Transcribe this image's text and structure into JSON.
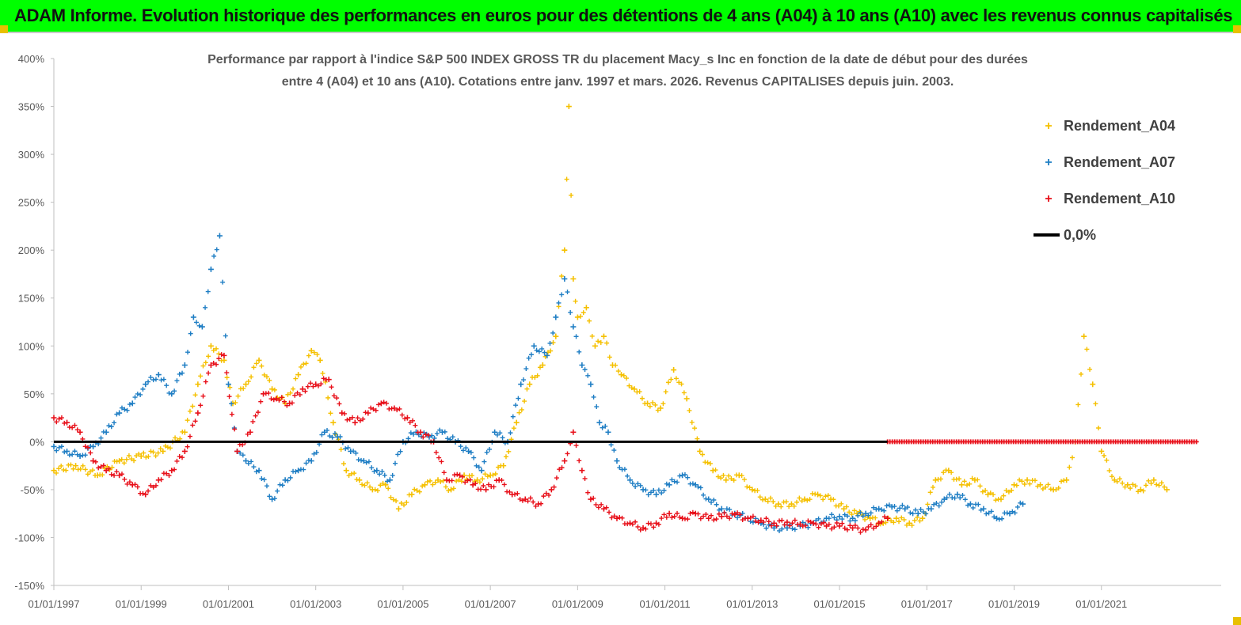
{
  "banner": {
    "title": "ADAM Informe. Evolution historique des performances en euros pour des détentions de 4 ans (A04) à 10 ans (A10) avec les revenus connus capitalisés"
  },
  "colors": {
    "banner_bg": "#00ff00",
    "a04": "#f5c000",
    "a07": "#1f7ec4",
    "a10": "#e8101a",
    "zero_line": "#000000"
  },
  "chart_data": {
    "type": "scatter",
    "title_lines": [
      "Performance par rapport à l'indice S&P 500 INDEX GROSS TR  du placement Macy_s Inc en fonction de la date de début pour des durées",
      "entre 4 (A04) et 10 ans (A10). Cotations entre janv. 1997 et mars. 2026. Revenus CAPITALISES depuis juin. 2003."
    ],
    "ylim": [
      -150,
      400
    ],
    "y_ticks": [
      "400%",
      "350%",
      "300%",
      "250%",
      "200%",
      "150%",
      "100%",
      "50%",
      "0%",
      "-50%",
      "-100%",
      "-150%"
    ],
    "x_ticks": [
      "01/01/1997",
      "01/01/1999",
      "01/01/2001",
      "01/01/2003",
      "01/01/2005",
      "01/01/2007",
      "01/01/2009",
      "01/01/2011",
      "01/01/2013",
      "01/01/2015",
      "01/01/2017",
      "01/01/2019",
      "01/01/2021"
    ],
    "xlim": [
      1997.0,
      2023.2
    ],
    "legend_position": "top-right",
    "series": [
      {
        "name": "Rendement_A04",
        "color": "#f5c000",
        "x": [
          1997.0,
          1997.5,
          1998.0,
          1998.5,
          1999.0,
          1999.5,
          2000.0,
          2000.3,
          2000.6,
          2000.9,
          2001.1,
          2001.4,
          2001.7,
          2002.0,
          2002.3,
          2002.6,
          2002.9,
          2003.1,
          2003.4,
          2003.7,
          2004.0,
          2004.3,
          2004.6,
          2004.9,
          2005.2,
          2005.5,
          2005.8,
          2006.1,
          2006.4,
          2006.7,
          2007.0,
          2007.3,
          2007.6,
          2007.9,
          2008.2,
          2008.5,
          2008.7,
          2008.8,
          2008.9,
          2009.0,
          2009.2,
          2009.4,
          2009.6,
          2009.8,
          2010.0,
          2010.3,
          2010.6,
          2010.9,
          2011.2,
          2011.5,
          2011.8,
          2012.1,
          2012.4,
          2012.7,
          2013.0,
          2013.3,
          2013.6,
          2013.9,
          2014.2,
          2014.5,
          2014.8,
          2015.1,
          2015.4,
          2015.7,
          2016.0,
          2016.3,
          2016.6,
          2016.9,
          2017.2,
          2017.5,
          2017.8,
          2018.1,
          2018.4,
          2018.7,
          2019.0,
          2019.3,
          2019.6,
          2019.9,
          2020.2,
          2020.4,
          2020.6,
          2020.8,
          2021.0,
          2021.3,
          2021.6,
          2021.9,
          2022.2,
          2022.5
        ],
        "y": [
          -30,
          -25,
          -35,
          -20,
          -15,
          -10,
          10,
          60,
          100,
          85,
          40,
          60,
          85,
          55,
          40,
          70,
          95,
          85,
          20,
          -30,
          -40,
          -50,
          -45,
          -70,
          -55,
          -45,
          -40,
          -50,
          -35,
          -40,
          -35,
          -25,
          20,
          60,
          80,
          110,
          200,
          350,
          170,
          130,
          140,
          100,
          110,
          80,
          70,
          55,
          40,
          35,
          75,
          45,
          -10,
          -30,
          -40,
          -35,
          -50,
          -60,
          -65,
          -65,
          -60,
          -55,
          -60,
          -70,
          -75,
          -80,
          -85,
          -80,
          -85,
          -80,
          -40,
          -30,
          -45,
          -40,
          -55,
          -60,
          -45,
          -40,
          -45,
          -50,
          -40,
          0,
          110,
          60,
          -10,
          -40,
          -45,
          -50,
          -40,
          -50
        ]
      },
      {
        "name": "Rendement_A07",
        "color": "#1f7ec4",
        "x": [
          1997.0,
          1997.3,
          1997.6,
          1997.9,
          1998.2,
          1998.5,
          1998.8,
          1999.1,
          1999.4,
          1999.7,
          2000.0,
          2000.2,
          2000.4,
          2000.6,
          2000.8,
          2001.0,
          2001.2,
          2001.4,
          2001.7,
          2002.0,
          2002.3,
          2002.6,
          2002.9,
          2003.2,
          2003.5,
          2003.8,
          2004.1,
          2004.4,
          2004.7,
          2005.0,
          2005.3,
          2005.6,
          2005.9,
          2006.2,
          2006.5,
          2006.8,
          2007.1,
          2007.4,
          2007.7,
          2008.0,
          2008.3,
          2008.5,
          2008.7,
          2008.9,
          2009.1,
          2009.3,
          2009.5,
          2009.7,
          2009.9,
          2010.2,
          2010.5,
          2010.8,
          2011.1,
          2011.4,
          2011.7,
          2012.0,
          2012.3,
          2012.6,
          2012.9,
          2013.2,
          2013.5,
          2013.8,
          2014.1,
          2014.4,
          2014.7,
          2015.0,
          2015.3,
          2015.6,
          2015.9,
          2016.2,
          2016.5,
          2016.8,
          2017.1,
          2017.4,
          2017.7,
          2018.0,
          2018.3,
          2018.6,
          2018.9,
          2019.2
        ],
        "y": [
          -5,
          -10,
          -15,
          -5,
          10,
          30,
          40,
          60,
          70,
          50,
          80,
          130,
          120,
          180,
          215,
          60,
          -10,
          -20,
          -30,
          -60,
          -40,
          -30,
          -20,
          10,
          5,
          -10,
          -20,
          -30,
          -40,
          0,
          10,
          5,
          10,
          0,
          -10,
          -30,
          10,
          0,
          60,
          100,
          90,
          130,
          170,
          120,
          80,
          60,
          20,
          10,
          -20,
          -40,
          -50,
          -55,
          -45,
          -35,
          -45,
          -60,
          -70,
          -75,
          -80,
          -85,
          -90,
          -90,
          -88,
          -85,
          -80,
          -78,
          -80,
          -75,
          -70,
          -68,
          -70,
          -75,
          -70,
          -60,
          -55,
          -65,
          -70,
          -80,
          -75,
          -65
        ]
      },
      {
        "name": "Rendement_A10",
        "color": "#e8101a",
        "x": [
          1997.0,
          1997.3,
          1997.6,
          1997.9,
          1998.2,
          1998.5,
          1998.8,
          1999.1,
          1999.4,
          1999.7,
          2000.0,
          2000.3,
          2000.6,
          2000.9,
          2001.2,
          2001.5,
          2001.8,
          2002.1,
          2002.4,
          2002.7,
          2003.0,
          2003.3,
          2003.6,
          2003.9,
          2004.2,
          2004.5,
          2004.8,
          2005.1,
          2005.4,
          2005.7,
          2006.0,
          2006.3,
          2006.6,
          2006.9,
          2007.2,
          2007.5,
          2007.8,
          2008.1,
          2008.4,
          2008.7,
          2008.9,
          2009.1,
          2009.3,
          2009.6,
          2009.9,
          2010.2,
          2010.5,
          2010.8,
          2011.1,
          2011.4,
          2011.7,
          2012.0,
          2012.3,
          2012.6,
          2012.9,
          2013.2,
          2013.5,
          2013.8,
          2014.1,
          2014.4,
          2014.7,
          2015.0,
          2015.3,
          2015.6,
          2015.9,
          2016.1
        ],
        "y": [
          25,
          20,
          10,
          -20,
          -30,
          -35,
          -45,
          -55,
          -40,
          -30,
          -10,
          30,
          80,
          90,
          -10,
          10,
          50,
          45,
          40,
          55,
          60,
          65,
          30,
          20,
          30,
          40,
          35,
          25,
          10,
          0,
          -40,
          -35,
          -45,
          -50,
          -40,
          -55,
          -60,
          -65,
          -50,
          -20,
          10,
          -30,
          -60,
          -70,
          -80,
          -85,
          -90,
          -85,
          -75,
          -80,
          -75,
          -80,
          -78,
          -76,
          -80,
          -82,
          -85,
          -84,
          -86,
          -85,
          -88,
          -88,
          -90,
          -92,
          -85,
          -80
        ]
      },
      {
        "name": "Rendement_A10_zero",
        "color": "#e8101a",
        "x": [
          2016.1,
          2023.2
        ],
        "y": [
          0,
          0
        ]
      }
    ],
    "reference_line": {
      "name": "0,0%",
      "value": 0,
      "color": "#000000"
    },
    "legend": [
      "Rendement_A04",
      "Rendement_A07",
      "Rendement_A10",
      "0,0%"
    ]
  }
}
